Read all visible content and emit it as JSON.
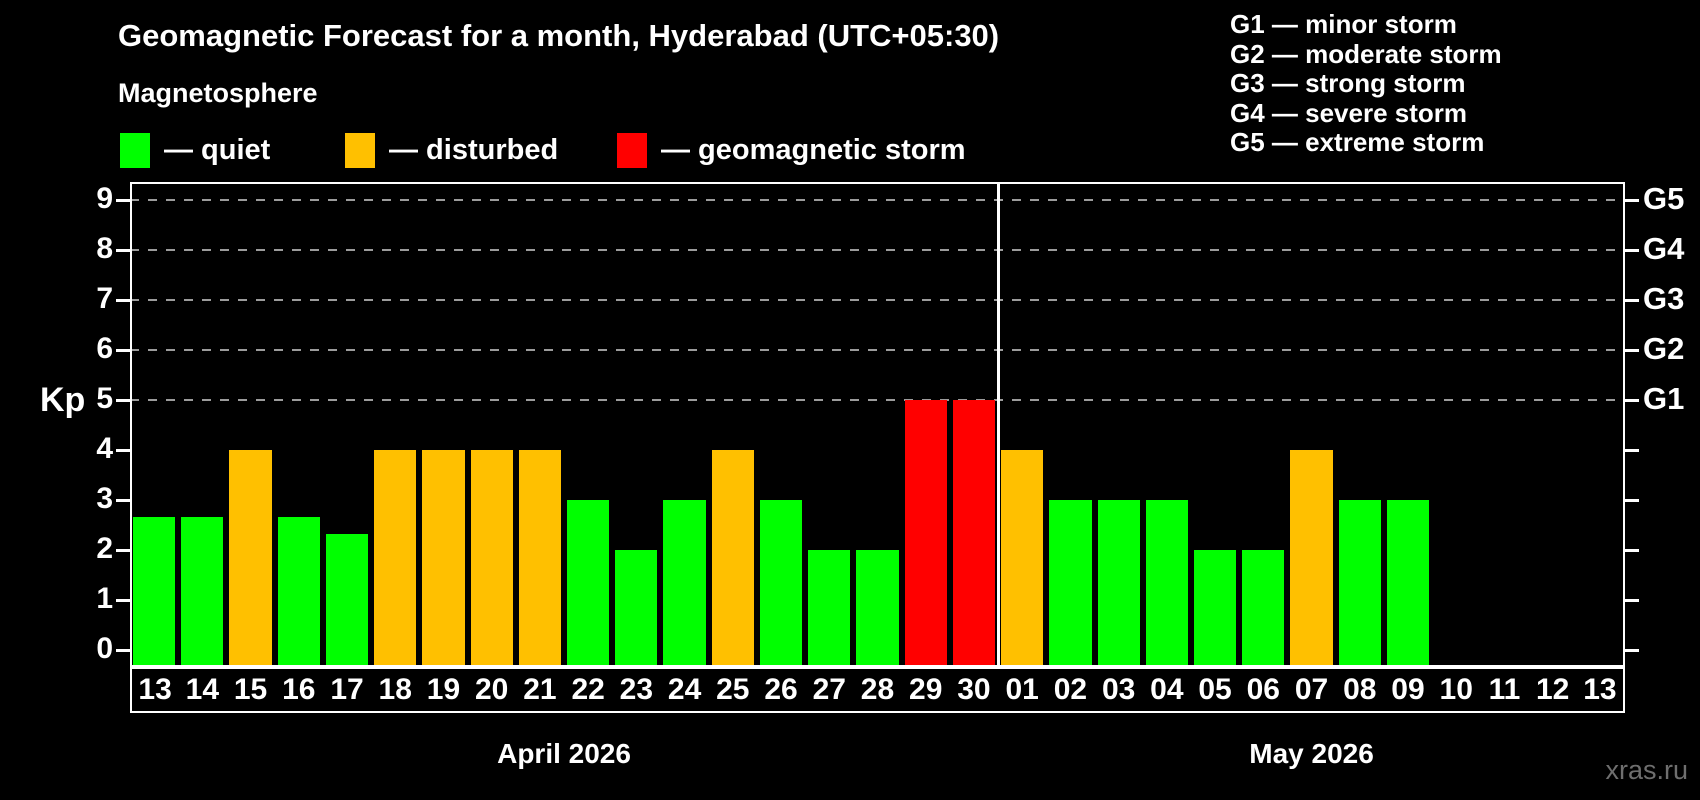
{
  "header": {
    "title": "Geomagnetic Forecast for a month, Hyderabad (UTC+05:30)",
    "subtitle": "Magnetosphere"
  },
  "legend": {
    "items": [
      {
        "name": "quiet",
        "label": "— quiet",
        "color": "#00ff00"
      },
      {
        "name": "disturbed",
        "label": "— disturbed",
        "color": "#ffc000"
      },
      {
        "name": "storm",
        "label": "— geomagnetic storm",
        "color": "#ff0000"
      }
    ]
  },
  "g_legend": {
    "items": [
      "G1 — minor storm",
      "G2 — moderate storm",
      "G3 — strong storm",
      "G4 — severe storm",
      "G5 — extreme storm"
    ]
  },
  "axes": {
    "y_label": "Kp",
    "kp_ticks": [
      0,
      1,
      2,
      3,
      4,
      5,
      6,
      7,
      8,
      9
    ],
    "g_levels": [
      {
        "label": "G1",
        "kp": 5
      },
      {
        "label": "G2",
        "kp": 6
      },
      {
        "label": "G3",
        "kp": 7
      },
      {
        "label": "G4",
        "kp": 8
      },
      {
        "label": "G5",
        "kp": 9
      }
    ]
  },
  "colors": {
    "quiet": "#00ff00",
    "disturbed": "#ffc000",
    "storm": "#ff0000",
    "axis": "#ffffff",
    "grid": "#9c9c9c",
    "watermark": "#6e6e6e",
    "background": "#000000"
  },
  "watermark": "xras.ru",
  "chart_data": {
    "type": "bar",
    "title": "Geomagnetic Forecast for a month, Hyderabad (UTC+05:30)",
    "ylabel": "Kp",
    "ylim": [
      0,
      9.35
    ],
    "grid": "dashed horizontal lines at Kp 5,6,7,8,9 (G1–G5)",
    "legend_position": "top-left",
    "right_axis_labels": [
      "G1",
      "G2",
      "G3",
      "G4",
      "G5"
    ],
    "months": [
      {
        "label": "April 2026",
        "days": [
          {
            "day": "13",
            "kp": 2.67,
            "status": "quiet"
          },
          {
            "day": "14",
            "kp": 2.67,
            "status": "quiet"
          },
          {
            "day": "15",
            "kp": 4,
            "status": "disturbed"
          },
          {
            "day": "16",
            "kp": 2.67,
            "status": "quiet"
          },
          {
            "day": "17",
            "kp": 2.33,
            "status": "quiet"
          },
          {
            "day": "18",
            "kp": 4,
            "status": "disturbed"
          },
          {
            "day": "19",
            "kp": 4,
            "status": "disturbed"
          },
          {
            "day": "20",
            "kp": 4,
            "status": "disturbed"
          },
          {
            "day": "21",
            "kp": 4,
            "status": "disturbed"
          },
          {
            "day": "22",
            "kp": 3,
            "status": "quiet"
          },
          {
            "day": "23",
            "kp": 2,
            "status": "quiet"
          },
          {
            "day": "24",
            "kp": 3,
            "status": "quiet"
          },
          {
            "day": "25",
            "kp": 4,
            "status": "disturbed"
          },
          {
            "day": "26",
            "kp": 3,
            "status": "quiet"
          },
          {
            "day": "27",
            "kp": 2,
            "status": "quiet"
          },
          {
            "day": "28",
            "kp": 2,
            "status": "quiet"
          },
          {
            "day": "29",
            "kp": 5,
            "status": "storm"
          },
          {
            "day": "30",
            "kp": 5,
            "status": "storm"
          }
        ]
      },
      {
        "label": "May 2026",
        "days": [
          {
            "day": "01",
            "kp": 4,
            "status": "disturbed"
          },
          {
            "day": "02",
            "kp": 3,
            "status": "quiet"
          },
          {
            "day": "03",
            "kp": 3,
            "status": "quiet"
          },
          {
            "day": "04",
            "kp": 3,
            "status": "quiet"
          },
          {
            "day": "05",
            "kp": 2,
            "status": "quiet"
          },
          {
            "day": "06",
            "kp": 2,
            "status": "quiet"
          },
          {
            "day": "07",
            "kp": 4,
            "status": "disturbed"
          },
          {
            "day": "08",
            "kp": 3,
            "status": "quiet"
          },
          {
            "day": "09",
            "kp": 3,
            "status": "quiet"
          },
          {
            "day": "10",
            "kp": null,
            "status": null
          },
          {
            "day": "11",
            "kp": null,
            "status": null
          },
          {
            "day": "12",
            "kp": null,
            "status": null
          },
          {
            "day": "13",
            "kp": null,
            "status": null
          }
        ]
      }
    ]
  }
}
